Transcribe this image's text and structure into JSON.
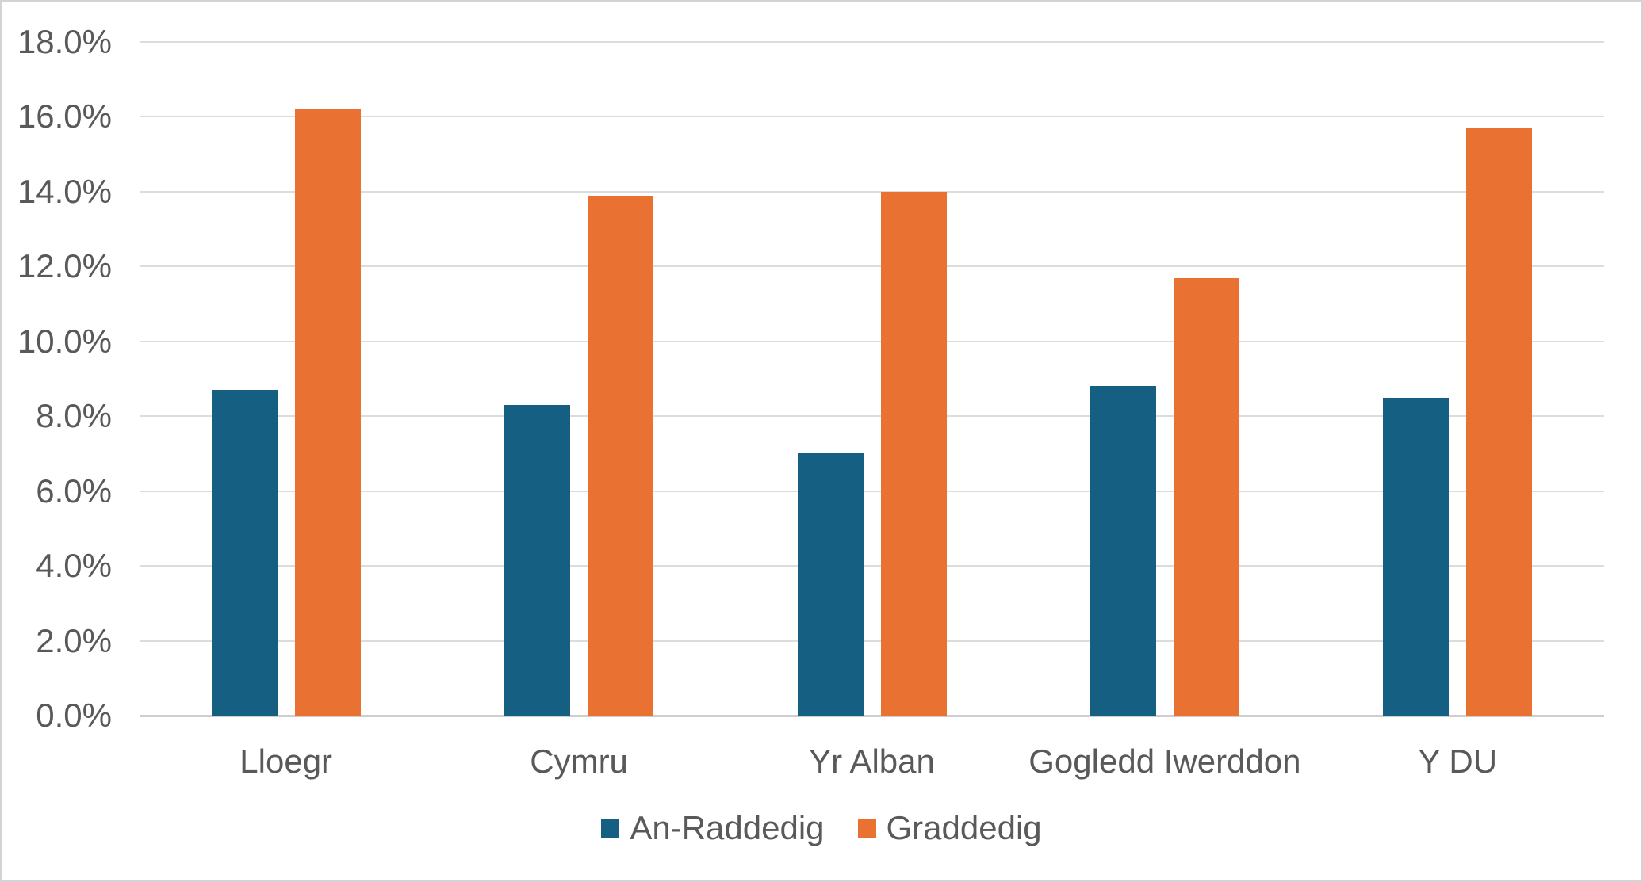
{
  "chart_data": {
    "type": "bar",
    "title": "",
    "categories": [
      "Lloegr",
      "Cymru",
      "Yr Alban",
      "Gogledd Iwerddon",
      "Y DU"
    ],
    "series": [
      {
        "name": "An-Raddedig",
        "color": "#156082",
        "values": [
          8.7,
          8.3,
          7.0,
          8.8,
          8.5
        ]
      },
      {
        "name": "Graddedig",
        "color": "#E97132",
        "values": [
          16.2,
          13.9,
          14.0,
          11.7,
          15.7
        ]
      }
    ],
    "value_unit": "%",
    "ylim": [
      0,
      18
    ],
    "ytick_step": 2,
    "ytick_labels": [
      "0.0%",
      "2.0%",
      "4.0%",
      "6.0%",
      "8.0%",
      "10.0%",
      "12.0%",
      "14.0%",
      "16.0%",
      "18.0%"
    ],
    "xlabel": "",
    "ylabel": "",
    "grid": true,
    "legend_position": "bottom",
    "colors": {
      "background": "#FFFFFF",
      "border": "#D3D3D3",
      "gridline": "#DCDCDC",
      "axis_line": "#CFCDCD",
      "text": "#595959"
    }
  }
}
